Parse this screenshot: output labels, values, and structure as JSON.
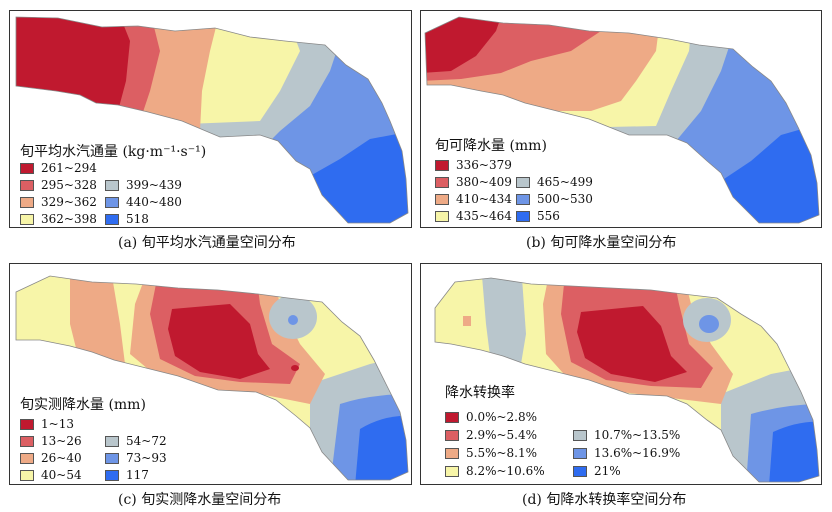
{
  "panels": [
    {
      "id": "a",
      "legend_title": "旬平均水汽通量 (kg·m⁻¹·s⁻¹)",
      "caption": "(a) 旬平均水汽通量空间分布",
      "legend": [
        {
          "label": "261~294",
          "color": "#c0192f"
        },
        {
          "label": "295~328",
          "color": "#dc5f63"
        },
        {
          "label": "329~362",
          "color": "#eeaa86"
        },
        {
          "label": "362~398",
          "color": "#f7f5a8"
        },
        {
          "label": "399~439",
          "color": "#b9c6cc"
        },
        {
          "label": "440~480",
          "color": "#6e95e6"
        },
        {
          "label": "518",
          "color": "#2f6cf0"
        }
      ]
    },
    {
      "id": "b",
      "legend_title": "旬可降水量 (mm)",
      "caption": "(b) 旬可降水量空间分布",
      "legend": [
        {
          "label": "336~379",
          "color": "#c0192f"
        },
        {
          "label": "380~409",
          "color": "#dc5f63"
        },
        {
          "label": "410~434",
          "color": "#eeaa86"
        },
        {
          "label": "435~464",
          "color": "#f7f5a8"
        },
        {
          "label": "465~499",
          "color": "#b9c6cc"
        },
        {
          "label": "500~530",
          "color": "#6e95e6"
        },
        {
          "label": "556",
          "color": "#2f6cf0"
        }
      ]
    },
    {
      "id": "c",
      "legend_title": "旬实测降水量 (mm)",
      "caption": "(c) 旬实测降水量空间分布",
      "legend": [
        {
          "label": "1~13",
          "color": "#c0192f"
        },
        {
          "label": "13~26",
          "color": "#dc5f63"
        },
        {
          "label": "26~40",
          "color": "#eeaa86"
        },
        {
          "label": "40~54",
          "color": "#f7f5a8"
        },
        {
          "label": "54~72",
          "color": "#b9c6cc"
        },
        {
          "label": "73~93",
          "color": "#6e95e6"
        },
        {
          "label": "117",
          "color": "#2f6cf0"
        }
      ]
    },
    {
      "id": "d",
      "legend_title": "降水转换率",
      "caption": "(d) 旬降水转换率空间分布",
      "legend": [
        {
          "label": "0.0%~2.8%",
          "color": "#c0192f"
        },
        {
          "label": "2.9%~5.4%",
          "color": "#dc5f63"
        },
        {
          "label": "5.5%~8.1%",
          "color": "#eeaa86"
        },
        {
          "label": "8.2%~10.6%",
          "color": "#f7f5a8"
        },
        {
          "label": "10.7%~13.5%",
          "color": "#b9c6cc"
        },
        {
          "label": "13.6%~16.9%",
          "color": "#6e95e6"
        },
        {
          "label": "21%",
          "color": "#2f6cf0"
        }
      ]
    }
  ]
}
